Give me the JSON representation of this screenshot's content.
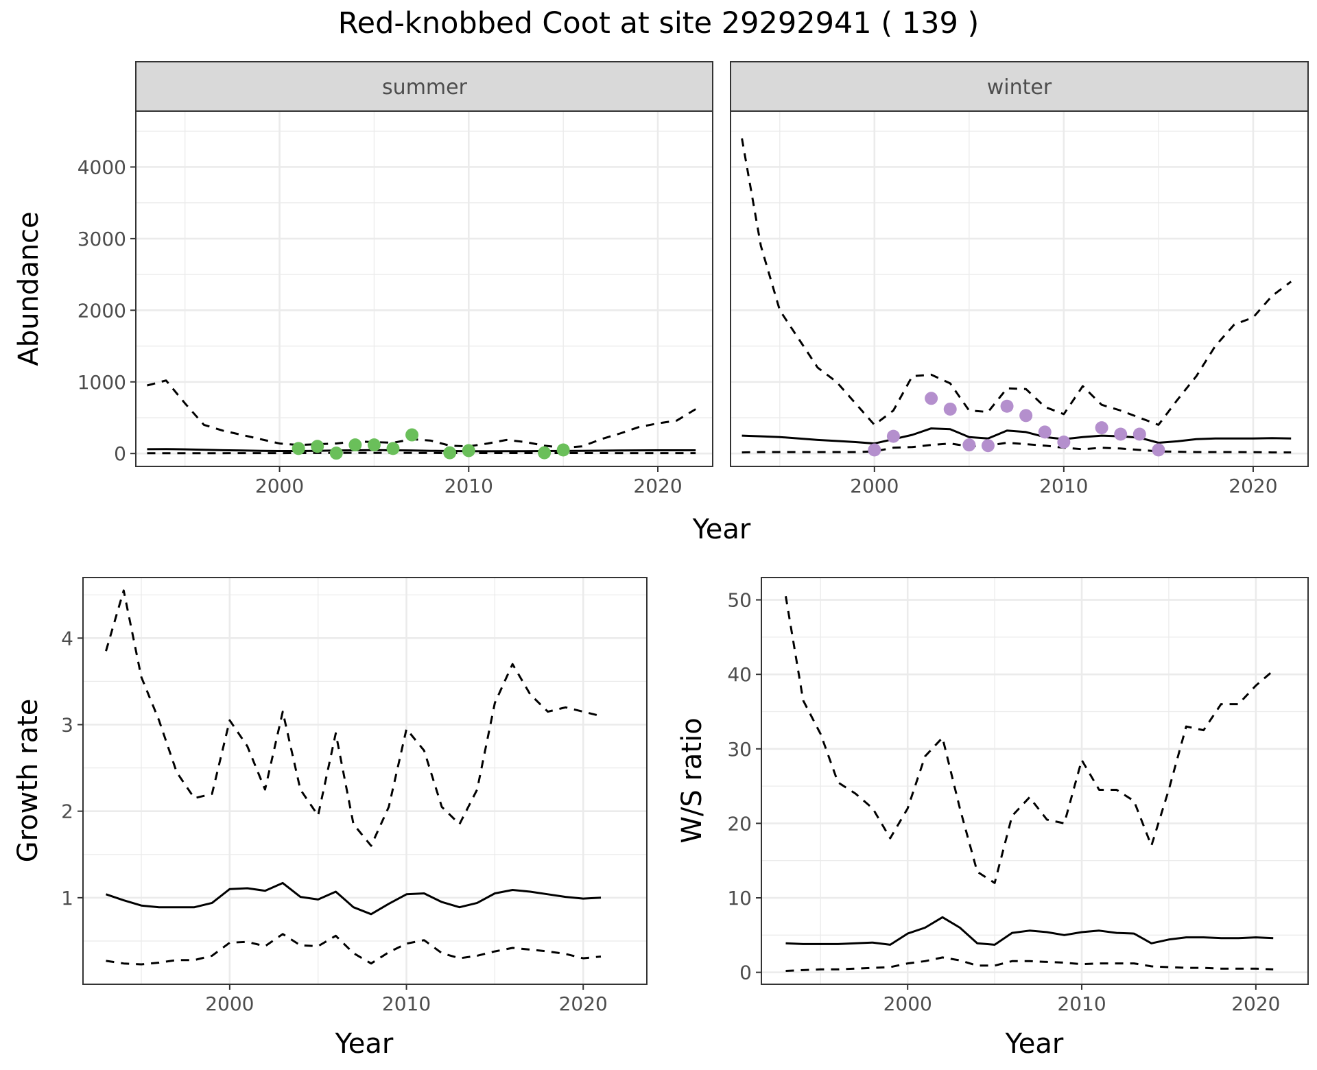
{
  "title": "Red-knobbed Coot at site 29292941 ( 139 )",
  "colors": {
    "summer_points": "#6abf5a",
    "winter_points": "#b48fcd",
    "line": "#000000",
    "strip": "#d9d9d9",
    "grid": "#ebebeb"
  },
  "chart_data": [
    {
      "type": "line",
      "facet": "summer",
      "xlabel": "Year",
      "ylabel": "Abundance",
      "xlim": [
        1992.4,
        2022.9
      ],
      "ylim": [
        -180,
        4780
      ],
      "xticks": [
        2000,
        2010,
        2020
      ],
      "yticks": [
        0,
        1000,
        2000,
        3000,
        4000
      ],
      "grid": true,
      "series": [
        {
          "style": "solid",
          "x": [
            1993,
            1994,
            1995,
            1996,
            1997,
            1998,
            1999,
            2000,
            2001,
            2002,
            2003,
            2004,
            2005,
            2006,
            2007,
            2008,
            2009,
            2010,
            2011,
            2012,
            2013,
            2014,
            2015,
            2016,
            2017,
            2018,
            2019,
            2020,
            2021,
            2022
          ],
          "values": [
            60,
            62,
            58,
            52,
            46,
            42,
            38,
            35,
            35,
            38,
            42,
            45,
            48,
            45,
            42,
            38,
            35,
            33,
            32,
            33,
            34,
            35,
            36,
            38,
            40,
            42,
            44,
            45,
            45,
            45
          ]
        },
        {
          "style": "dashed",
          "x": [
            1993,
            1994,
            1995,
            1996,
            1997,
            1998,
            1999,
            2000,
            2001,
            2002,
            2003,
            2004,
            2005,
            2006,
            2007,
            2008,
            2009,
            2010,
            2011,
            2012,
            2013,
            2014,
            2015,
            2016,
            2017,
            2018,
            2019,
            2020,
            2021,
            2022
          ],
          "values": [
            950,
            1020,
            700,
            400,
            320,
            260,
            200,
            140,
            120,
            130,
            140,
            170,
            160,
            150,
            200,
            180,
            110,
            100,
            140,
            190,
            160,
            110,
            80,
            100,
            200,
            280,
            370,
            420,
            460,
            620
          ]
        },
        {
          "style": "dashed",
          "x": [
            1993,
            1994,
            1995,
            1996,
            1997,
            1998,
            1999,
            2000,
            2001,
            2002,
            2003,
            2004,
            2005,
            2006,
            2007,
            2008,
            2009,
            2010,
            2011,
            2012,
            2013,
            2014,
            2015,
            2016,
            2017,
            2018,
            2019,
            2020,
            2021,
            2022
          ],
          "values": [
            5,
            5,
            5,
            5,
            5,
            6,
            6,
            6,
            7,
            8,
            9,
            9,
            9,
            9,
            9,
            8,
            7,
            7,
            7,
            7,
            7,
            7,
            7,
            7,
            7,
            6,
            6,
            6,
            6,
            6
          ]
        }
      ],
      "points": {
        "x": [
          2001,
          2002,
          2003,
          2004,
          2005,
          2006,
          2007,
          2009,
          2010,
          2014,
          2015
        ],
        "values": [
          70,
          100,
          5,
          120,
          120,
          70,
          260,
          10,
          40,
          10,
          50
        ]
      }
    },
    {
      "type": "line",
      "facet": "winter",
      "xlabel": "Year",
      "ylabel": "Abundance",
      "xlim": [
        1992.4,
        2022.9
      ],
      "ylim": [
        -180,
        4780
      ],
      "xticks": [
        2000,
        2010,
        2020
      ],
      "yticks": [
        0,
        1000,
        2000,
        3000,
        4000
      ],
      "grid": true,
      "series": [
        {
          "style": "solid",
          "x": [
            1993,
            1994,
            1995,
            1996,
            1997,
            1998,
            1999,
            2000,
            2001,
            2002,
            2003,
            2004,
            2005,
            2006,
            2007,
            2008,
            2009,
            2010,
            2011,
            2012,
            2013,
            2014,
            2015,
            2016,
            2017,
            2018,
            2019,
            2020,
            2021,
            2022
          ],
          "values": [
            250,
            240,
            230,
            210,
            190,
            175,
            160,
            140,
            200,
            260,
            350,
            340,
            230,
            210,
            320,
            300,
            230,
            200,
            230,
            250,
            240,
            220,
            150,
            170,
            200,
            210,
            210,
            210,
            215,
            210
          ]
        },
        {
          "style": "dashed",
          "x": [
            1993,
            1994,
            1995,
            1996,
            1997,
            1998,
            1999,
            2000,
            2001,
            2002,
            2003,
            2004,
            2005,
            2006,
            2007,
            2008,
            2009,
            2010,
            2011,
            2012,
            2013,
            2014,
            2015,
            2016,
            2017,
            2018,
            2019,
            2020,
            2021,
            2022
          ],
          "values": [
            4400,
            2900,
            2000,
            1600,
            1200,
            1000,
            700,
            400,
            600,
            1080,
            1100,
            980,
            600,
            580,
            910,
            900,
            650,
            550,
            940,
            680,
            600,
            500,
            400,
            750,
            1080,
            1500,
            1800,
            1900,
            2200,
            2400
          ]
        },
        {
          "style": "dashed",
          "x": [
            1993,
            1994,
            1995,
            1996,
            1997,
            1998,
            1999,
            2000,
            2001,
            2002,
            2003,
            2004,
            2005,
            2006,
            2007,
            2008,
            2009,
            2010,
            2011,
            2012,
            2013,
            2014,
            2015,
            2016,
            2017,
            2018,
            2019,
            2020,
            2021,
            2022
          ],
          "values": [
            15,
            20,
            20,
            20,
            20,
            20,
            20,
            30,
            80,
            90,
            120,
            140,
            100,
            110,
            150,
            130,
            110,
            80,
            60,
            80,
            70,
            50,
            30,
            25,
            20,
            20,
            20,
            18,
            15,
            15
          ]
        }
      ],
      "points": {
        "x": [
          2000,
          2001,
          2003,
          2004,
          2005,
          2006,
          2007,
          2008,
          2009,
          2010,
          2012,
          2013,
          2014,
          2015
        ],
        "values": [
          50,
          240,
          770,
          620,
          120,
          110,
          660,
          530,
          300,
          160,
          360,
          270,
          270,
          50
        ]
      }
    },
    {
      "type": "line",
      "xlabel": "Year",
      "ylabel": "Growth rate",
      "xlim": [
        1991.7,
        2023.6
      ],
      "ylim": [
        0.0,
        4.7
      ],
      "xticks": [
        2000,
        2010,
        2020
      ],
      "yticks": [
        1,
        2,
        3,
        4
      ],
      "grid": true,
      "series": [
        {
          "style": "solid",
          "x": [
            1993,
            1994,
            1995,
            1996,
            1997,
            1998,
            1999,
            2000,
            2001,
            2002,
            2003,
            2004,
            2005,
            2006,
            2007,
            2008,
            2009,
            2010,
            2011,
            2012,
            2013,
            2014,
            2015,
            2016,
            2017,
            2018,
            2019,
            2020,
            2021
          ],
          "values": [
            1.04,
            0.97,
            0.91,
            0.89,
            0.89,
            0.89,
            0.94,
            1.1,
            1.11,
            1.08,
            1.17,
            1.01,
            0.98,
            1.07,
            0.89,
            0.81,
            0.93,
            1.04,
            1.05,
            0.95,
            0.89,
            0.94,
            1.05,
            1.09,
            1.07,
            1.04,
            1.01,
            0.99,
            1.0
          ]
        },
        {
          "style": "dashed",
          "x": [
            1993,
            1994,
            1995,
            1996,
            1997,
            1998,
            1999,
            2000,
            2001,
            2002,
            2003,
            2004,
            2005,
            2006,
            2007,
            2008,
            2009,
            2010,
            2011,
            2012,
            2013,
            2014,
            2015,
            2016,
            2017,
            2018,
            2019,
            2020,
            2021
          ],
          "values": [
            3.85,
            4.55,
            3.55,
            3.05,
            2.45,
            2.15,
            2.2,
            3.05,
            2.75,
            2.25,
            3.15,
            2.25,
            1.95,
            2.9,
            1.85,
            1.6,
            2.05,
            2.95,
            2.7,
            2.05,
            1.85,
            2.25,
            3.25,
            3.7,
            3.35,
            3.15,
            3.2,
            3.15,
            3.1
          ]
        },
        {
          "style": "dashed",
          "x": [
            1993,
            1994,
            1995,
            1996,
            1997,
            1998,
            1999,
            2000,
            2001,
            2002,
            2003,
            2004,
            2005,
            2006,
            2007,
            2008,
            2009,
            2010,
            2011,
            2012,
            2013,
            2014,
            2015,
            2016,
            2017,
            2018,
            2019,
            2020,
            2021
          ],
          "values": [
            0.27,
            0.24,
            0.23,
            0.25,
            0.28,
            0.28,
            0.33,
            0.48,
            0.49,
            0.44,
            0.58,
            0.45,
            0.44,
            0.56,
            0.36,
            0.24,
            0.37,
            0.47,
            0.51,
            0.36,
            0.3,
            0.33,
            0.38,
            0.42,
            0.4,
            0.38,
            0.35,
            0.3,
            0.32
          ]
        }
      ]
    },
    {
      "type": "line",
      "xlabel": "Year",
      "ylabel": "W/S ratio",
      "xlim": [
        1991.6,
        2023.0
      ],
      "ylim": [
        -1.6,
        53
      ],
      "xticks": [
        2000,
        2010,
        2020
      ],
      "yticks": [
        0,
        10,
        20,
        30,
        40,
        50
      ],
      "grid": true,
      "series": [
        {
          "style": "solid",
          "x": [
            1993,
            1994,
            1995,
            1996,
            1997,
            1998,
            1999,
            2000,
            2001,
            2002,
            2003,
            2004,
            2005,
            2006,
            2007,
            2008,
            2009,
            2010,
            2011,
            2012,
            2013,
            2014,
            2015,
            2016,
            2017,
            2018,
            2019,
            2020,
            2021
          ],
          "values": [
            3.9,
            3.8,
            3.8,
            3.8,
            3.9,
            4.0,
            3.7,
            5.2,
            6.0,
            7.4,
            6.0,
            3.9,
            3.7,
            5.3,
            5.6,
            5.4,
            5.0,
            5.4,
            5.6,
            5.3,
            5.2,
            3.9,
            4.4,
            4.7,
            4.7,
            4.6,
            4.6,
            4.7,
            4.6
          ]
        },
        {
          "style": "dashed",
          "x": [
            1993,
            1994,
            1995,
            1996,
            1997,
            1998,
            1999,
            2000,
            2001,
            2002,
            2003,
            2004,
            2005,
            2006,
            2007,
            2008,
            2009,
            2010,
            2011,
            2012,
            2013,
            2014,
            2015,
            2016,
            2017,
            2018,
            2019,
            2020,
            2021
          ],
          "values": [
            50.5,
            36.5,
            32.0,
            25.5,
            24.0,
            22.0,
            18.0,
            22.0,
            29.0,
            31.5,
            22.0,
            13.5,
            12.0,
            21.0,
            23.5,
            20.5,
            20.0,
            28.5,
            24.5,
            24.5,
            23.0,
            17.0,
            24.5,
            33.0,
            32.5,
            36.0,
            36.0,
            38.5,
            40.5
          ]
        },
        {
          "style": "dashed",
          "x": [
            1993,
            1994,
            1995,
            1996,
            1997,
            1998,
            1999,
            2000,
            2001,
            2002,
            2003,
            2004,
            2005,
            2006,
            2007,
            2008,
            2009,
            2010,
            2011,
            2012,
            2013,
            2014,
            2015,
            2016,
            2017,
            2018,
            2019,
            2020,
            2021
          ],
          "values": [
            0.2,
            0.3,
            0.4,
            0.4,
            0.5,
            0.6,
            0.7,
            1.2,
            1.5,
            2.0,
            1.6,
            0.9,
            0.9,
            1.5,
            1.5,
            1.4,
            1.3,
            1.1,
            1.2,
            1.2,
            1.2,
            0.8,
            0.7,
            0.6,
            0.6,
            0.5,
            0.5,
            0.5,
            0.4
          ]
        }
      ]
    }
  ],
  "strip_labels": [
    "summer",
    "winter"
  ]
}
